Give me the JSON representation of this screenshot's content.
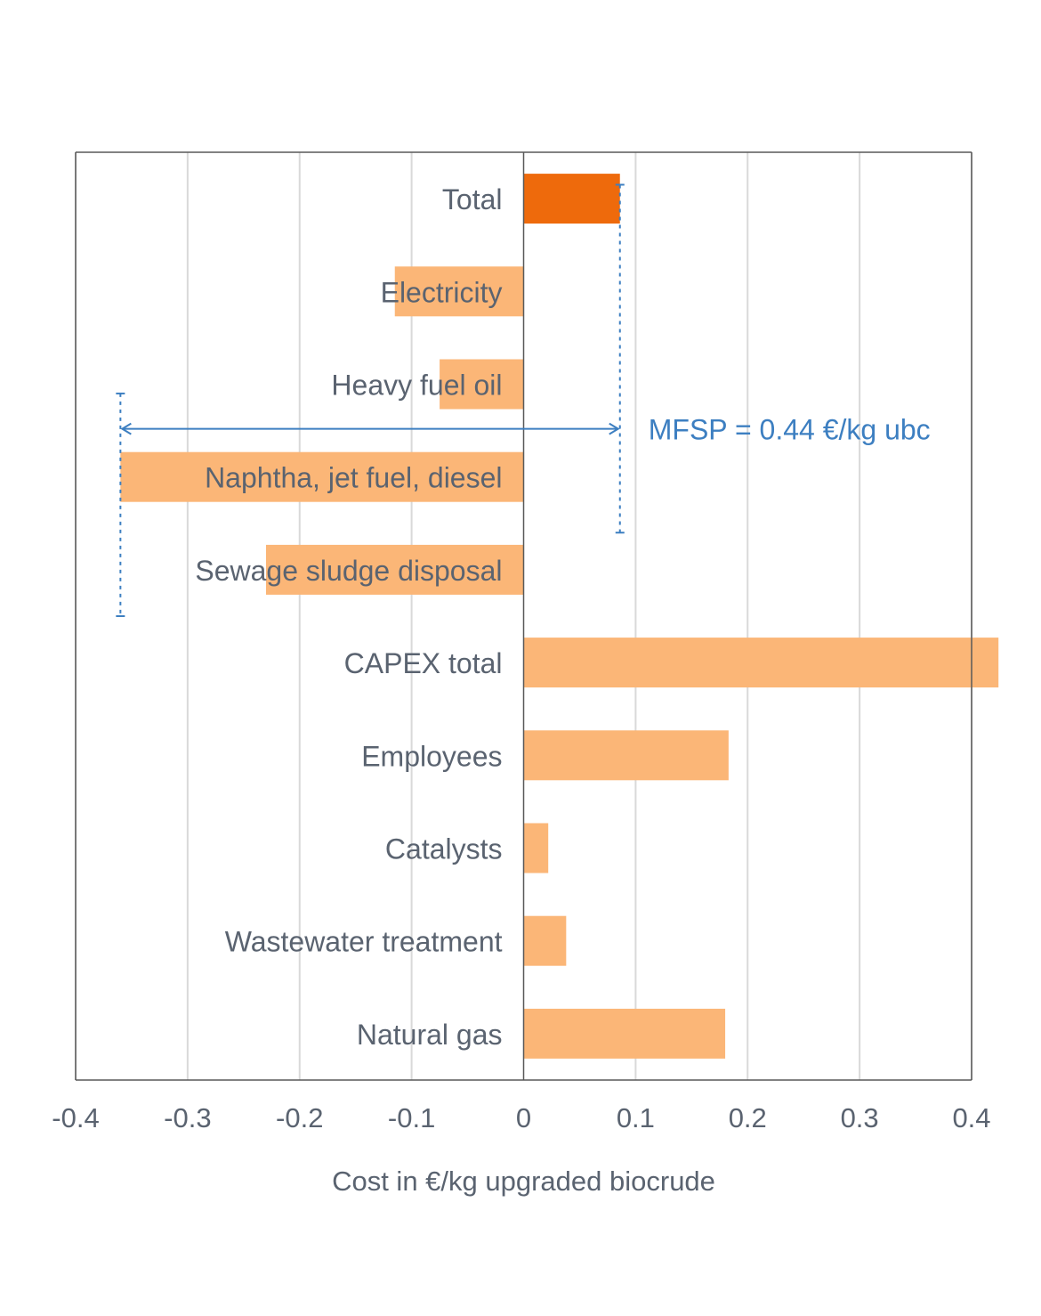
{
  "chart_data": {
    "type": "bar",
    "orientation": "horizontal",
    "categories": [
      "Total",
      "Electricity",
      "Heavy fuel oil",
      "Naphtha, jet fuel, diesel",
      "Sewage sludge disposal",
      "CAPEX total",
      "Employees",
      "Catalysts",
      "Wastewater treatment",
      "Natural gas"
    ],
    "values": [
      0.086,
      -0.115,
      -0.075,
      -0.36,
      -0.23,
      0.424,
      0.183,
      0.022,
      0.038,
      0.18
    ],
    "highlight_index": 0,
    "xlabel": "Cost in €/kg upgraded biocrude",
    "ylabel": "",
    "xlim": [
      -0.4,
      0.4
    ],
    "x_ticks": [
      -0.4,
      -0.3,
      -0.2,
      -0.1,
      0,
      0.1,
      0.2,
      0.3,
      0.4
    ],
    "x_tick_labels": [
      "-0.4",
      "-0.3",
      "-0.2",
      "-0.1",
      "0",
      "0.1",
      "0.2",
      "0.3",
      "0.4"
    ],
    "grid": true,
    "legend": "none",
    "annotation": {
      "text": "MFSP = 0.44 €/kg ubc",
      "from": -0.36,
      "to": 0.086
    }
  },
  "colors": {
    "bar": "#fbb677",
    "highlight": "#ee6a0c",
    "annotation": "#3d7fc1",
    "grid": "#d9d9d9",
    "axis": "#595959",
    "text": "#5a6370"
  }
}
